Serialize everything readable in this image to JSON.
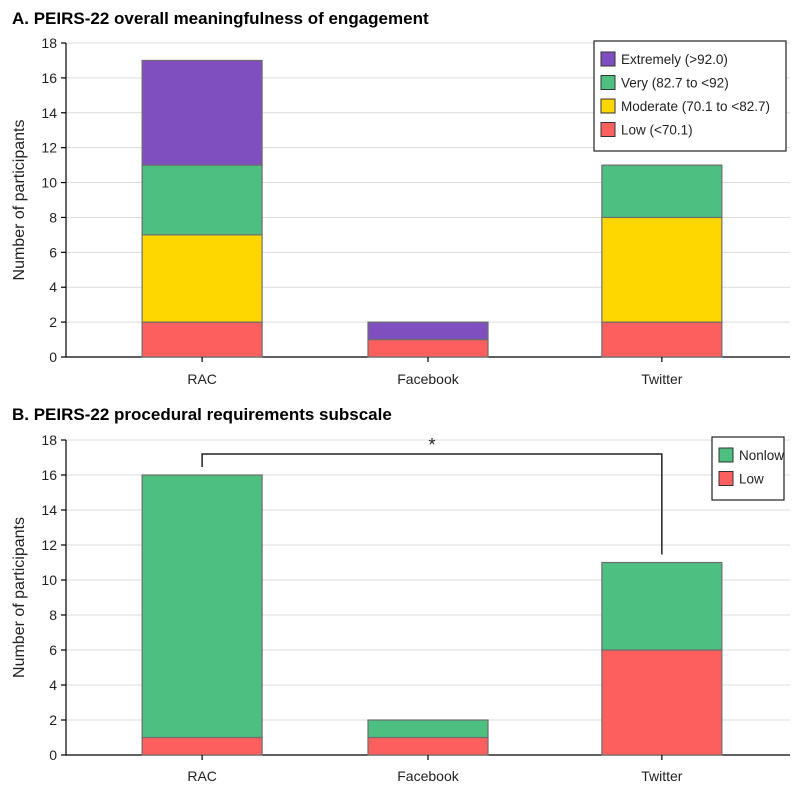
{
  "chart_data": [
    {
      "type": "bar",
      "stacked": true,
      "title": "A. PEIRS-22 overall meaningfulness of engagement",
      "ylabel": "Number of participants",
      "xlabel": "",
      "categories": [
        "RAC",
        "Facebook",
        "Twitter"
      ],
      "ylim": [
        0,
        18
      ],
      "yticks": [
        0,
        2,
        4,
        6,
        8,
        10,
        12,
        14,
        16,
        18
      ],
      "grid": true,
      "legend_position": "top-right",
      "series": [
        {
          "name": "Low (<70.1)",
          "color": "#fd5f5f",
          "values": [
            2,
            1,
            2
          ]
        },
        {
          "name": "Moderate (70.1 to <82.7)",
          "color": "#ffd700",
          "values": [
            5,
            0,
            6
          ]
        },
        {
          "name": "Very (82.7 to <92)",
          "color": "#4dbf80",
          "values": [
            4,
            0,
            3
          ]
        },
        {
          "name": "Extremely (>92.0)",
          "color": "#7f4fbf",
          "values": [
            6,
            1,
            0
          ]
        }
      ],
      "legend_order": [
        "Extremely (>92.0)",
        "Very (82.7 to <92)",
        "Moderate (70.1 to <82.7)",
        "Low (<70.1)"
      ]
    },
    {
      "type": "bar",
      "stacked": true,
      "title": "B. PEIRS-22 procedural requirements subscale",
      "ylabel": "Number of participants",
      "xlabel": "",
      "categories": [
        "RAC",
        "Facebook",
        "Twitter"
      ],
      "ylim": [
        0,
        18
      ],
      "yticks": [
        0,
        2,
        4,
        6,
        8,
        10,
        12,
        14,
        16,
        18
      ],
      "grid": true,
      "legend_position": "top-right",
      "series": [
        {
          "name": "Low",
          "color": "#fd5f5f",
          "values": [
            1,
            1,
            6
          ]
        },
        {
          "name": "Nonlow",
          "color": "#4dbf80",
          "values": [
            15,
            1,
            5
          ]
        }
      ],
      "legend_order": [
        "Nonlow",
        "Low"
      ],
      "annotation": {
        "type": "significance-bracket",
        "from": "RAC",
        "to": "Twitter",
        "level": 17.2,
        "label": "*"
      }
    }
  ]
}
